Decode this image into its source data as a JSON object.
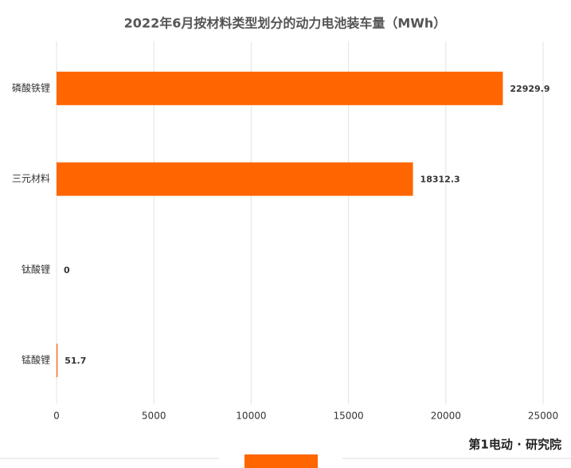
{
  "chart_data": {
    "type": "barh",
    "title": "2022年6月按材料类型划分的动力电池装车量（MWh）",
    "categories": [
      "磷酸铁锂",
      "三元材料",
      "钛酸锂",
      "锰酸锂"
    ],
    "values": [
      22929.9,
      18312.3,
      0,
      51.7
    ],
    "color": "#ff6600",
    "xlim": [
      0,
      25000
    ],
    "xticks": [
      0,
      5000,
      10000,
      15000,
      20000,
      25000
    ],
    "grid": true,
    "watermark": "第1电动 · 研究院"
  }
}
